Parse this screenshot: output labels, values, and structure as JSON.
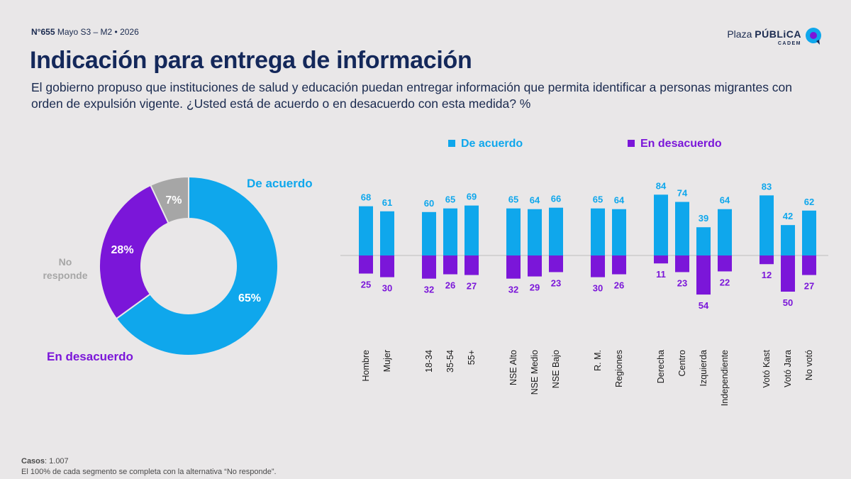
{
  "header": {
    "issue_label": "N°655",
    "issue_date": "Mayo S3 – M2 • 2026",
    "brand_plaza": "Plaza",
    "brand_publica": "PÚBLiCA",
    "brand_sub": "CADEM"
  },
  "title": "Indicación para entrega de información",
  "subtitle": "El gobierno propuso que instituciones de salud y educación puedan entregar información que permita identificar a personas migrantes con orden de expulsión vigente. ¿Usted está de acuerdo o en desacuerdo con esta medida? %",
  "colors": {
    "agree": "#0fa7ec",
    "disagree": "#7b16d9",
    "no_answer": "#a6a6a6",
    "navy": "#14285a"
  },
  "chart_data": [
    {
      "type": "pie",
      "slices": [
        {
          "label": "De acuerdo",
          "value": 65,
          "display": "65%",
          "color": "#0fa7ec"
        },
        {
          "label": "En desacuerdo",
          "value": 28,
          "display": "28%",
          "color": "#7b16d9"
        },
        {
          "label": "No responde",
          "value": 7,
          "display": "7%",
          "color": "#a6a6a6"
        }
      ],
      "no_answer_label_lines": [
        "No",
        "responde"
      ]
    },
    {
      "type": "bar",
      "legend": [
        "De acuerdo",
        "En desacuerdo"
      ],
      "legend_position": "top",
      "categories": [
        "Hombre",
        "Mujer",
        "18-34",
        "35-54",
        "55+",
        "NSE Alto",
        "NSE Medio",
        "NSE Bajo",
        "R. M.",
        "Regiones",
        "Derecha",
        "Centro",
        "Izquierda",
        "Independiente",
        "Votó Kast",
        "Votó Jara",
        "No votó"
      ],
      "groups": [
        2,
        3,
        3,
        2,
        4,
        3
      ],
      "series": [
        {
          "name": "De acuerdo",
          "values": [
            68,
            61,
            60,
            65,
            69,
            65,
            64,
            66,
            65,
            64,
            84,
            74,
            39,
            64,
            83,
            42,
            62
          ]
        },
        {
          "name": "En desacuerdo",
          "values": [
            25,
            30,
            32,
            26,
            27,
            32,
            29,
            23,
            30,
            26,
            11,
            23,
            54,
            22,
            12,
            50,
            27
          ]
        }
      ]
    }
  ],
  "footer": {
    "cases_label": "Casos",
    "cases_value": ": 1.007",
    "note": "El 100% de cada segmento se completa con la alternativa “No responde”."
  }
}
